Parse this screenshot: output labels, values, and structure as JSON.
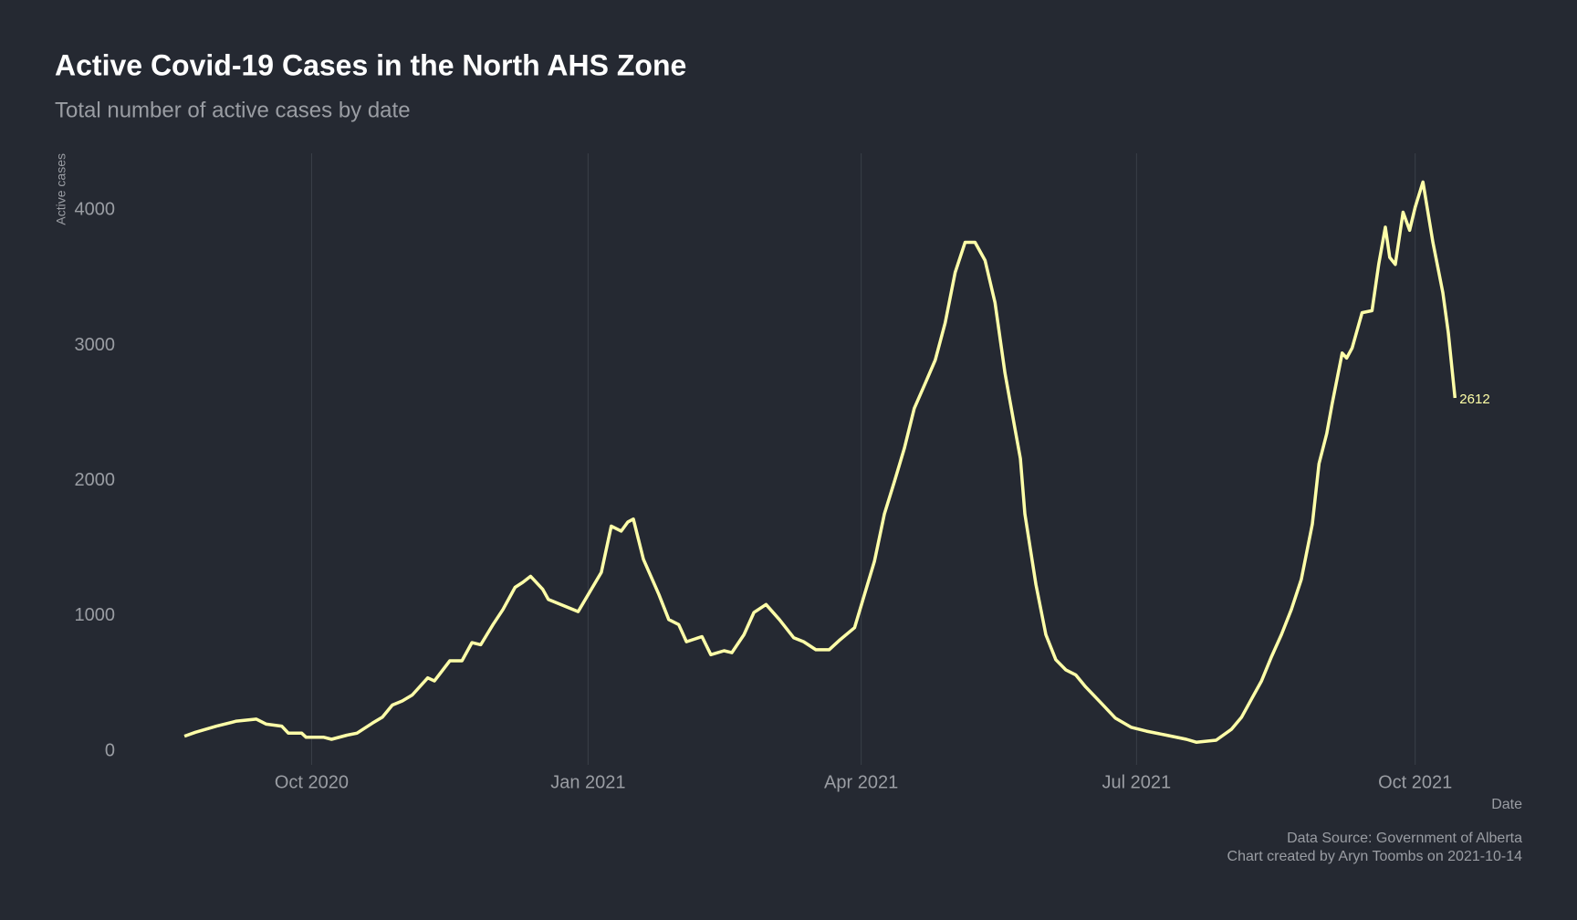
{
  "chart_data": {
    "type": "line",
    "title": "Active Covid-19 Cases in the North AHS Zone",
    "subtitle": "Total number of active cases by date",
    "y_label": "Active cases",
    "x_label": "Date",
    "caption": [
      "Data Source: Government of Alberta",
      "Chart created by Aryn Toombs on 2021-10-14"
    ],
    "color": "#ffffa8",
    "grid": "x",
    "xlim": [
      2020.573,
      2021.844
    ],
    "ylim": [
      -100,
      4420
    ],
    "xticks": [
      {
        "value": 2020.75,
        "label": "Oct 2020"
      },
      {
        "value": 2021.0,
        "label": "Jan 2021"
      },
      {
        "value": 2021.247,
        "label": "Apr 2021"
      },
      {
        "value": 2021.496,
        "label": "Jul 2021"
      },
      {
        "value": 2021.748,
        "label": "Oct 2021"
      }
    ],
    "yticks": [
      0,
      1000,
      2000,
      3000,
      4000
    ],
    "x": [
      2020.635,
      2020.645,
      2020.664,
      2020.682,
      2020.7,
      2020.709,
      2020.723,
      2020.729,
      2020.741,
      2020.745,
      2020.761,
      2020.768,
      2020.782,
      2020.791,
      2020.805,
      2020.814,
      2020.823,
      2020.832,
      2020.841,
      2020.855,
      2020.861,
      2020.875,
      2020.886,
      2020.895,
      2020.903,
      2020.914,
      2020.923,
      2020.934,
      2020.941,
      2020.948,
      2020.959,
      2020.964,
      2020.991,
      2021.012,
      2021.021,
      2021.03,
      2021.036,
      2021.041,
      2021.05,
      2021.064,
      2021.073,
      2021.082,
      2021.089,
      2021.103,
      2021.111,
      2021.123,
      2021.13,
      2021.141,
      2021.15,
      2021.161,
      2021.173,
      2021.186,
      2021.195,
      2021.206,
      2021.218,
      2021.227,
      2021.241,
      2021.25,
      2021.259,
      2021.268,
      2021.277,
      2021.286,
      2021.295,
      2021.305,
      2021.314,
      2021.323,
      2021.332,
      2021.341,
      2021.35,
      2021.359,
      2021.368,
      2021.377,
      2021.386,
      2021.391,
      2021.395,
      2021.405,
      2021.414,
      2021.423,
      2021.432,
      2021.441,
      2021.45,
      2021.464,
      2021.477,
      2021.491,
      2021.505,
      2021.523,
      2021.541,
      2021.55,
      2021.568,
      2021.582,
      2021.591,
      2021.6,
      2021.609,
      2021.618,
      2021.627,
      2021.636,
      2021.645,
      2021.655,
      2021.661,
      2021.668,
      2021.673,
      2021.682,
      2021.686,
      2021.691,
      2021.7,
      2021.709,
      2021.715,
      2021.721,
      2021.725,
      2021.73,
      2021.737,
      2021.743,
      2021.748,
      2021.755,
      2021.764,
      2021.773,
      2021.778,
      2021.784
    ],
    "values": [
      112,
      141,
      186,
      223,
      238,
      201,
      186,
      134,
      134,
      104,
      104,
      89,
      119,
      134,
      208,
      253,
      342,
      372,
      416,
      543,
      520,
      669,
      669,
      803,
      788,
      937,
      1048,
      1212,
      1249,
      1294,
      1197,
      1123,
      1033,
      1323,
      1665,
      1628,
      1695,
      1717,
      1420,
      1160,
      974,
      937,
      810,
      848,
      714,
      743,
      729,
      862,
      1026,
      1085,
      974,
      840,
      810,
      751,
      751,
      818,
      914,
      1160,
      1405,
      1755,
      1993,
      2238,
      2535,
      2721,
      2892,
      3167,
      3539,
      3762,
      3762,
      3628,
      3316,
      2796,
      2387,
      2164,
      1755,
      1234,
      862,
      677,
      602,
      565,
      476,
      357,
      245,
      178,
      149,
      119,
      89,
      67,
      82,
      164,
      253,
      387,
      520,
      699,
      862,
      1048,
      1271,
      1680,
      2126,
      2349,
      2572,
      2944,
      2907,
      2981,
      3242,
      3257,
      3599,
      3874,
      3651,
      3599,
      3985,
      3851,
      4022,
      4208,
      3762,
      3390,
      3093,
      2612
    ]
  }
}
